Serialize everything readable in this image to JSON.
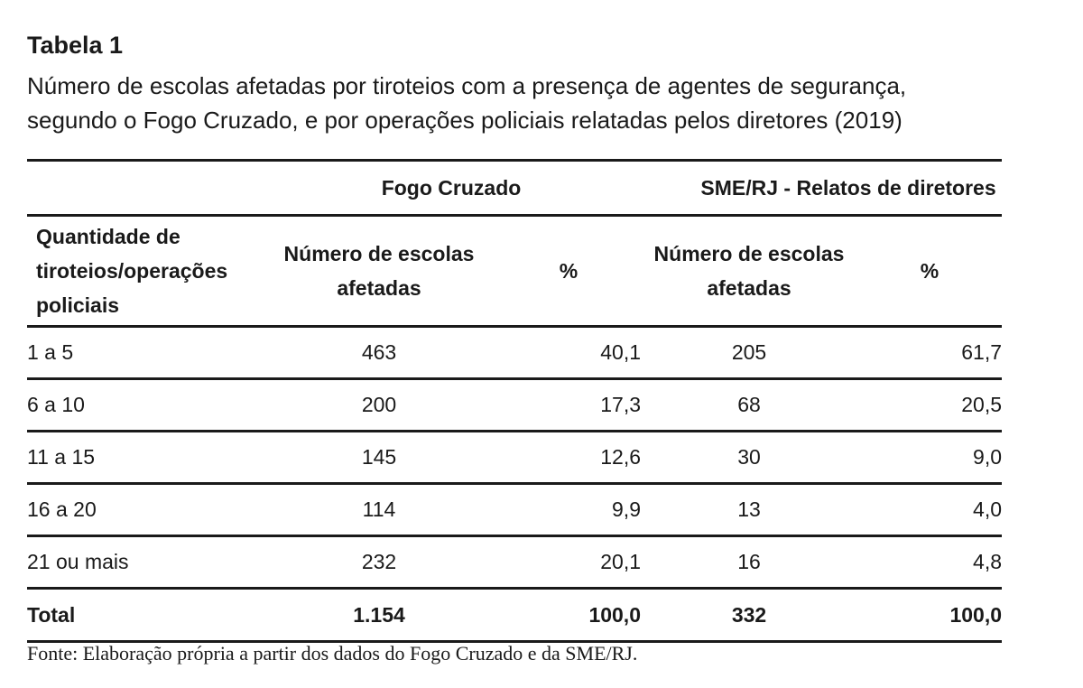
{
  "table_label": "Tabela 1",
  "caption_line1": "Número de escolas afetadas por tiroteios com a presença de agentes de segurança,",
  "caption_line2": "segundo o Fogo Cruzado, e por operações policiais relatadas pelos diretores (2019)",
  "header": {
    "group1": "Fogo Cruzado",
    "group2": "SME/RJ - Relatos de diretores",
    "row_header_line1": "Quantidade de",
    "row_header_line2": "tiroteios/operações",
    "row_header_line3": "policiais",
    "col_schools_line1": "Número de escolas",
    "col_schools_line2": "afetadas",
    "col_pct": "%"
  },
  "rows": [
    {
      "label": "1 a 5",
      "fc_n": "463",
      "fc_pct": "40,1",
      "sme_n": "205",
      "sme_pct": "61,7"
    },
    {
      "label": "6 a 10",
      "fc_n": "200",
      "fc_pct": "17,3",
      "sme_n": "68",
      "sme_pct": "20,5"
    },
    {
      "label": "11 a 15",
      "fc_n": "145",
      "fc_pct": "12,6",
      "sme_n": "30",
      "sme_pct": "9,0"
    },
    {
      "label": "16 a 20",
      "fc_n": "114",
      "fc_pct": "9,9",
      "sme_n": "13",
      "sme_pct": "4,0"
    },
    {
      "label": "21 ou mais",
      "fc_n": "232",
      "fc_pct": "20,1",
      "sme_n": "16",
      "sme_pct": "4,8"
    }
  ],
  "total": {
    "label": "Total",
    "fc_n": "1.154",
    "fc_pct": "100,0",
    "sme_n": "332",
    "sme_pct": "100,0"
  },
  "source": "Fonte: Elaboração própria a partir dos dados do Fogo Cruzado e da SME/RJ."
}
